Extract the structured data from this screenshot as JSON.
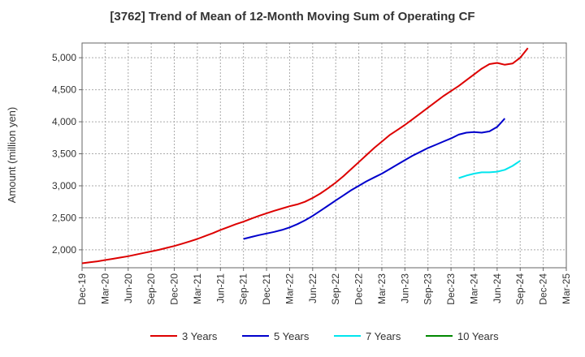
{
  "chart_data": {
    "type": "line",
    "title": "[3762]  Trend of Mean of 12-Month Moving Sum of Operating CF",
    "xlabel": "",
    "ylabel": "Amount (million yen)",
    "ylim": [
      1720,
      5230
    ],
    "y_ticks": [
      2000,
      2500,
      3000,
      3500,
      4000,
      4500,
      5000
    ],
    "y_tick_labels": [
      "2,000",
      "2,500",
      "3,000",
      "3,500",
      "4,000",
      "4,500",
      "5,000"
    ],
    "x_range_months": [
      0,
      63
    ],
    "x_ticks": [
      {
        "label": "Dec-19",
        "month": 0
      },
      {
        "label": "Mar-20",
        "month": 3
      },
      {
        "label": "Jun-20",
        "month": 6
      },
      {
        "label": "Sep-20",
        "month": 9
      },
      {
        "label": "Dec-20",
        "month": 12
      },
      {
        "label": "Mar-21",
        "month": 15
      },
      {
        "label": "Jun-21",
        "month": 18
      },
      {
        "label": "Sep-21",
        "month": 21
      },
      {
        "label": "Dec-21",
        "month": 24
      },
      {
        "label": "Mar-22",
        "month": 27
      },
      {
        "label": "Jun-22",
        "month": 30
      },
      {
        "label": "Sep-22",
        "month": 33
      },
      {
        "label": "Dec-22",
        "month": 36
      },
      {
        "label": "Mar-23",
        "month": 39
      },
      {
        "label": "Jun-23",
        "month": 42
      },
      {
        "label": "Sep-23",
        "month": 45
      },
      {
        "label": "Dec-23",
        "month": 48
      },
      {
        "label": "Mar-24",
        "month": 51
      },
      {
        "label": "Jun-24",
        "month": 54
      },
      {
        "label": "Sep-24",
        "month": 57
      },
      {
        "label": "Dec-24",
        "month": 60
      },
      {
        "label": "Mar-25",
        "month": 63
      }
    ],
    "grid": true,
    "legend_position": "bottom",
    "series": [
      {
        "name": "3 Years",
        "color": "#dd0000",
        "start_month": 0,
        "values": [
          1790,
          1805,
          1820,
          1840,
          1860,
          1880,
          1900,
          1925,
          1950,
          1975,
          2000,
          2030,
          2060,
          2095,
          2130,
          2170,
          2215,
          2260,
          2310,
          2355,
          2400,
          2440,
          2485,
          2530,
          2570,
          2610,
          2645,
          2680,
          2710,
          2750,
          2810,
          2880,
          2960,
          3050,
          3150,
          3260,
          3370,
          3480,
          3590,
          3690,
          3790,
          3870,
          3950,
          4040,
          4130,
          4220,
          4310,
          4400,
          4480,
          4560,
          4650,
          4740,
          4830,
          4900,
          4920,
          4890,
          4910,
          5000,
          5150
        ]
      },
      {
        "name": "5 Years",
        "color": "#0000cc",
        "start_month": 21,
        "values": [
          2170,
          2200,
          2230,
          2255,
          2280,
          2310,
          2350,
          2400,
          2460,
          2530,
          2610,
          2690,
          2770,
          2850,
          2930,
          3000,
          3070,
          3130,
          3190,
          3260,
          3330,
          3400,
          3470,
          3530,
          3590,
          3640,
          3690,
          3740,
          3800,
          3830,
          3840,
          3830,
          3850,
          3920,
          4050
        ]
      },
      {
        "name": "7 Years",
        "color": "#00e5ee",
        "start_month": 49,
        "values": [
          3120,
          3160,
          3190,
          3210,
          3210,
          3220,
          3250,
          3310,
          3390
        ]
      },
      {
        "name": "10 Years",
        "color": "#008800",
        "start_month": 49,
        "values": []
      }
    ]
  }
}
